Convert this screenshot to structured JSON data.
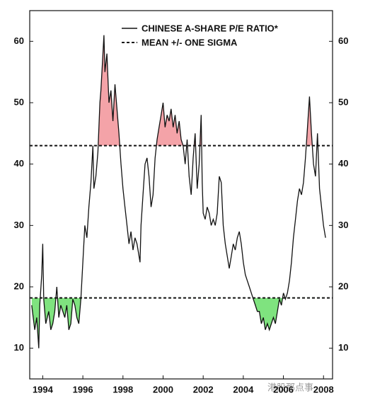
{
  "chart_data": {
    "type": "line",
    "x": [
      1993.45,
      1993.6,
      1993.7,
      1993.8,
      1993.85,
      1993.95,
      1994.0,
      1994.05,
      1994.15,
      1994.3,
      1994.4,
      1994.5,
      1994.6,
      1994.7,
      1994.8,
      1994.9,
      1995.0,
      1995.1,
      1995.2,
      1995.3,
      1995.4,
      1995.5,
      1995.6,
      1995.7,
      1995.8,
      1995.9,
      1996.0,
      1996.1,
      1996.2,
      1996.3,
      1996.4,
      1996.5,
      1996.55,
      1996.65,
      1996.75,
      1996.85,
      1996.9,
      1997.0,
      1997.05,
      1997.1,
      1997.2,
      1997.3,
      1997.4,
      1997.5,
      1997.6,
      1997.7,
      1997.8,
      1997.9,
      1998.0,
      1998.1,
      1998.2,
      1998.3,
      1998.4,
      1998.5,
      1998.6,
      1998.7,
      1998.8,
      1998.85,
      1998.9,
      1999.0,
      1999.1,
      1999.2,
      1999.3,
      1999.4,
      1999.5,
      1999.6,
      1999.7,
      1999.8,
      1999.9,
      2000.0,
      2000.1,
      2000.2,
      2000.3,
      2000.4,
      2000.5,
      2000.6,
      2000.7,
      2000.8,
      2000.9,
      2001.0,
      2001.1,
      2001.2,
      2001.3,
      2001.4,
      2001.5,
      2001.6,
      2001.7,
      2001.8,
      2001.9,
      2001.95,
      2002.0,
      2002.1,
      2002.2,
      2002.3,
      2002.4,
      2002.5,
      2002.6,
      2002.7,
      2002.8,
      2002.9,
      2003.0,
      2003.1,
      2003.2,
      2003.3,
      2003.4,
      2003.5,
      2003.6,
      2003.7,
      2003.8,
      2003.9,
      2004.0,
      2004.1,
      2004.2,
      2004.3,
      2004.4,
      2004.5,
      2004.6,
      2004.7,
      2004.8,
      2004.9,
      2005.0,
      2005.1,
      2005.2,
      2005.3,
      2005.4,
      2005.5,
      2005.6,
      2005.7,
      2005.8,
      2005.9,
      2006.0,
      2006.1,
      2006.2,
      2006.3,
      2006.4,
      2006.5,
      2006.6,
      2006.7,
      2006.8,
      2006.9,
      2007.0,
      2007.1,
      2007.2,
      2007.3,
      2007.4,
      2007.5,
      2007.6,
      2007.7,
      2007.8,
      2007.9,
      2008.0,
      2008.1
    ],
    "series": [
      {
        "name": "CHINESE A-SHARE P/E RATIO*",
        "color": "#111111",
        "values": [
          17,
          13,
          15,
          10,
          17,
          22,
          27,
          18,
          14,
          16,
          13,
          14,
          16,
          20,
          15,
          17,
          16,
          15,
          17,
          13,
          14,
          18,
          17,
          15,
          14,
          18,
          24,
          30,
          28,
          33,
          37,
          43,
          36,
          38,
          42,
          50,
          52,
          58,
          61,
          55,
          58,
          50,
          52,
          47,
          53,
          49,
          45,
          40,
          36,
          33,
          30,
          27,
          29,
          26,
          28,
          27,
          25,
          24,
          30,
          35,
          40,
          41,
          38,
          33,
          35,
          41,
          44,
          46,
          48,
          50,
          46,
          48,
          47,
          49,
          46,
          48,
          45,
          47,
          44,
          43,
          40,
          44,
          38,
          35,
          41,
          45,
          36,
          40,
          48,
          37,
          32,
          31,
          33,
          32,
          30,
          31,
          30,
          32,
          38,
          37,
          30,
          27,
          25,
          23,
          25,
          27,
          26,
          28,
          29,
          27,
          24,
          22,
          21,
          20,
          19,
          18,
          17,
          16,
          16,
          14,
          15,
          13,
          14,
          13,
          14,
          15,
          14,
          16,
          18,
          17,
          19,
          18,
          19,
          21,
          24,
          28,
          31,
          34,
          36,
          35,
          37,
          41,
          46,
          51,
          45,
          40,
          38,
          45,
          36,
          33,
          30,
          28
        ]
      }
    ],
    "reference_lines": {
      "name": "MEAN +/- ONE SIGMA",
      "color": "#111111",
      "values": [
        43,
        18.2
      ]
    },
    "fill_above_color": "#f4a3a8",
    "fill_below_color": "#7fe37f",
    "xlim": [
      1993.35,
      2008.45
    ],
    "xticks": [
      1994,
      1996,
      1998,
      2000,
      2002,
      2004,
      2006,
      2008
    ],
    "ylim": [
      5,
      65
    ],
    "yticks": [
      10,
      20,
      30,
      40,
      50,
      60
    ],
    "watermark": "港股那点事"
  }
}
